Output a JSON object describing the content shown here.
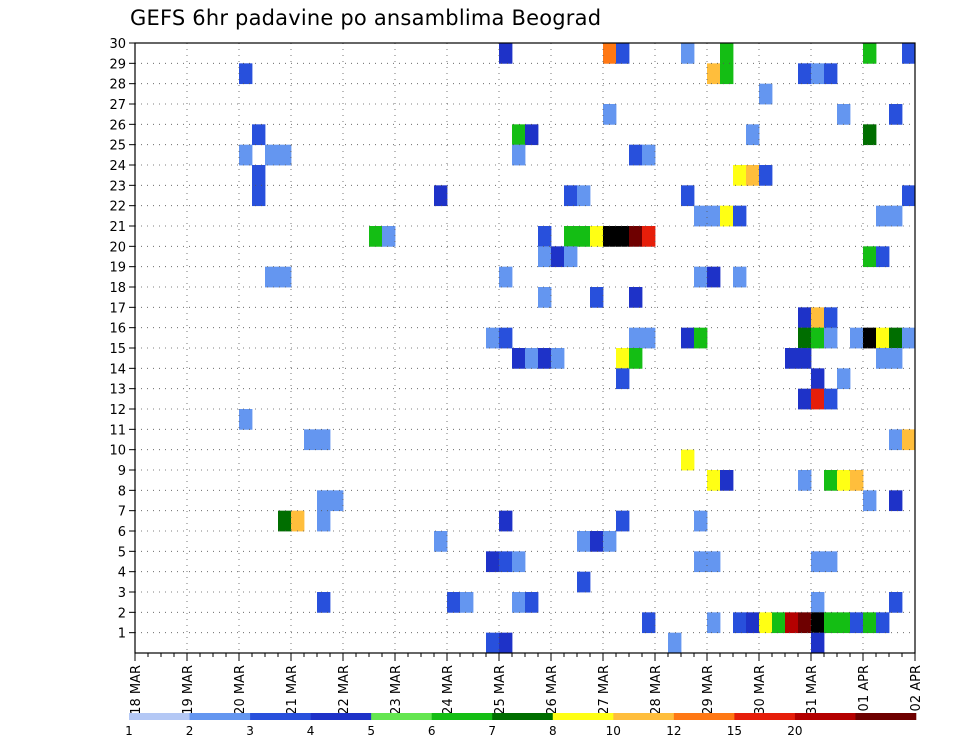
{
  "chart_data": {
    "type": "heatmap",
    "title": "GEFS 6hr padavine po ansamblima Beograd",
    "x_tick_labels": [
      "18 MAR",
      "19 MAR",
      "20 MAR",
      "21 MAR",
      "22 MAR",
      "23 MAR",
      "24 MAR",
      "25 MAR",
      "26 MAR",
      "27 MAR",
      "28 MAR",
      "29 MAR",
      "30 MAR",
      "31 MAR",
      "01 APR",
      "02 APR"
    ],
    "y_tick_labels": [
      "1",
      "2",
      "3",
      "4",
      "5",
      "6",
      "7",
      "8",
      "9",
      "10",
      "11",
      "12",
      "13",
      "14",
      "15",
      "16",
      "17",
      "18",
      "19",
      "20",
      "21",
      "22",
      "23",
      "24",
      "25",
      "26",
      "27",
      "28",
      "29",
      "30"
    ],
    "ylim": [
      0,
      30
    ],
    "steps_per_day": 4,
    "num_steps": 60,
    "grid": true,
    "colorbar": {
      "position": "bottom",
      "labels": [
        "1",
        "2",
        "3",
        "4",
        "5",
        "6",
        "7",
        "8",
        "10",
        "12",
        "15",
        "20"
      ],
      "colors": [
        "#b4c8f5",
        "#6496f0",
        "#2850dc",
        "#1e32c8",
        "#64e650",
        "#14be14",
        "#006e00",
        "#ffff14",
        "#ffbe3c",
        "#ff7814",
        "#e61e0a",
        "#b40000",
        "#6e0000"
      ]
    },
    "cells": [
      [
        28,
        30,
        3
      ],
      [
        36,
        30,
        9
      ],
      [
        37,
        30,
        2
      ],
      [
        42,
        30,
        1
      ],
      [
        45,
        30,
        5
      ],
      [
        56,
        30,
        5
      ],
      [
        59,
        30,
        2
      ],
      [
        8,
        29,
        2
      ],
      [
        44,
        29,
        8
      ],
      [
        45,
        29,
        5
      ],
      [
        51,
        29,
        2
      ],
      [
        52,
        29,
        1
      ],
      [
        53,
        29,
        2
      ],
      [
        48,
        28,
        1
      ],
      [
        36,
        27,
        1
      ],
      [
        54,
        27,
        1
      ],
      [
        58,
        27,
        2
      ],
      [
        9,
        26,
        2
      ],
      [
        29,
        26,
        5
      ],
      [
        30,
        26,
        3
      ],
      [
        47,
        26,
        1
      ],
      [
        56,
        26,
        6
      ],
      [
        8,
        25,
        1
      ],
      [
        10,
        25,
        1
      ],
      [
        11,
        25,
        1
      ],
      [
        29,
        25,
        1
      ],
      [
        38,
        25,
        2
      ],
      [
        39,
        25,
        1
      ],
      [
        9,
        24,
        2
      ],
      [
        46,
        24,
        7
      ],
      [
        47,
        24,
        8
      ],
      [
        48,
        24,
        2
      ],
      [
        9,
        23,
        2
      ],
      [
        23,
        23,
        3
      ],
      [
        33,
        23,
        2
      ],
      [
        34,
        23,
        1
      ],
      [
        42,
        23,
        2
      ],
      [
        59,
        23,
        2
      ],
      [
        43,
        22,
        1
      ],
      [
        44,
        22,
        1
      ],
      [
        45,
        22,
        7
      ],
      [
        46,
        22,
        2
      ],
      [
        57,
        22,
        1
      ],
      [
        58,
        22,
        1
      ],
      [
        18,
        21,
        5
      ],
      [
        19,
        21,
        1
      ],
      [
        31,
        21,
        2
      ],
      [
        33,
        21,
        5
      ],
      [
        34,
        21,
        5
      ],
      [
        35,
        21,
        7
      ],
      [
        36,
        21,
        13
      ],
      [
        37,
        21,
        13
      ],
      [
        38,
        21,
        12
      ],
      [
        39,
        21,
        10
      ],
      [
        31,
        20,
        1
      ],
      [
        32,
        20,
        3
      ],
      [
        33,
        20,
        1
      ],
      [
        56,
        20,
        5
      ],
      [
        57,
        20,
        2
      ],
      [
        10,
        19,
        1
      ],
      [
        11,
        19,
        1
      ],
      [
        28,
        19,
        1
      ],
      [
        43,
        19,
        1
      ],
      [
        44,
        19,
        3
      ],
      [
        46,
        19,
        1
      ],
      [
        31,
        18,
        1
      ],
      [
        35,
        18,
        2
      ],
      [
        38,
        18,
        3
      ],
      [
        51,
        17,
        3
      ],
      [
        52,
        17,
        8
      ],
      [
        53,
        17,
        2
      ],
      [
        27,
        16,
        1
      ],
      [
        28,
        16,
        2
      ],
      [
        38,
        16,
        1
      ],
      [
        39,
        16,
        1
      ],
      [
        42,
        16,
        3
      ],
      [
        43,
        16,
        5
      ],
      [
        51,
        16,
        6
      ],
      [
        52,
        16,
        5
      ],
      [
        53,
        16,
        1
      ],
      [
        55,
        16,
        1
      ],
      [
        56,
        16,
        13
      ],
      [
        57,
        16,
        7
      ],
      [
        58,
        16,
        6
      ],
      [
        59,
        16,
        1
      ],
      [
        29,
        15,
        3
      ],
      [
        30,
        15,
        1
      ],
      [
        31,
        15,
        3
      ],
      [
        32,
        15,
        1
      ],
      [
        37,
        15,
        7
      ],
      [
        38,
        15,
        5
      ],
      [
        50,
        15,
        3
      ],
      [
        51,
        15,
        3
      ],
      [
        57,
        15,
        1
      ],
      [
        58,
        15,
        1
      ],
      [
        37,
        14,
        2
      ],
      [
        52,
        14,
        3
      ],
      [
        54,
        14,
        1
      ],
      [
        51,
        13,
        3
      ],
      [
        52,
        13,
        10
      ],
      [
        53,
        13,
        2
      ],
      [
        8,
        12,
        1
      ],
      [
        13,
        11,
        1
      ],
      [
        14,
        11,
        1
      ],
      [
        58,
        11,
        1
      ],
      [
        59,
        11,
        8
      ],
      [
        42,
        10,
        7
      ],
      [
        44,
        9,
        7
      ],
      [
        45,
        9,
        3
      ],
      [
        51,
        9,
        1
      ],
      [
        53,
        9,
        5
      ],
      [
        54,
        9,
        7
      ],
      [
        55,
        9,
        8
      ],
      [
        14,
        8,
        1
      ],
      [
        15,
        8,
        1
      ],
      [
        56,
        8,
        1
      ],
      [
        58,
        8,
        3
      ],
      [
        11,
        7,
        6
      ],
      [
        12,
        7,
        8
      ],
      [
        14,
        7,
        1
      ],
      [
        28,
        7,
        3
      ],
      [
        37,
        7,
        2
      ],
      [
        43,
        7,
        1
      ],
      [
        23,
        6,
        1
      ],
      [
        34,
        6,
        1
      ],
      [
        35,
        6,
        3
      ],
      [
        36,
        6,
        1
      ],
      [
        27,
        5,
        3
      ],
      [
        28,
        5,
        2
      ],
      [
        29,
        5,
        1
      ],
      [
        43,
        5,
        1
      ],
      [
        44,
        5,
        1
      ],
      [
        52,
        5,
        1
      ],
      [
        53,
        5,
        1
      ],
      [
        34,
        4,
        2
      ],
      [
        14,
        3,
        2
      ],
      [
        24,
        3,
        2
      ],
      [
        25,
        3,
        1
      ],
      [
        29,
        3,
        1
      ],
      [
        30,
        3,
        2
      ],
      [
        52,
        3,
        1
      ],
      [
        58,
        3,
        2
      ],
      [
        39,
        2,
        2
      ],
      [
        44,
        2,
        1
      ],
      [
        46,
        2,
        2
      ],
      [
        47,
        2,
        3
      ],
      [
        48,
        2,
        7
      ],
      [
        49,
        2,
        5
      ],
      [
        50,
        2,
        11
      ],
      [
        51,
        2,
        12
      ],
      [
        52,
        2,
        13
      ],
      [
        53,
        2,
        5
      ],
      [
        54,
        2,
        5
      ],
      [
        55,
        2,
        2
      ],
      [
        56,
        2,
        5
      ],
      [
        57,
        2,
        2
      ],
      [
        27,
        1,
        2
      ],
      [
        28,
        1,
        3
      ],
      [
        41,
        1,
        1
      ],
      [
        52,
        1,
        3
      ]
    ]
  }
}
